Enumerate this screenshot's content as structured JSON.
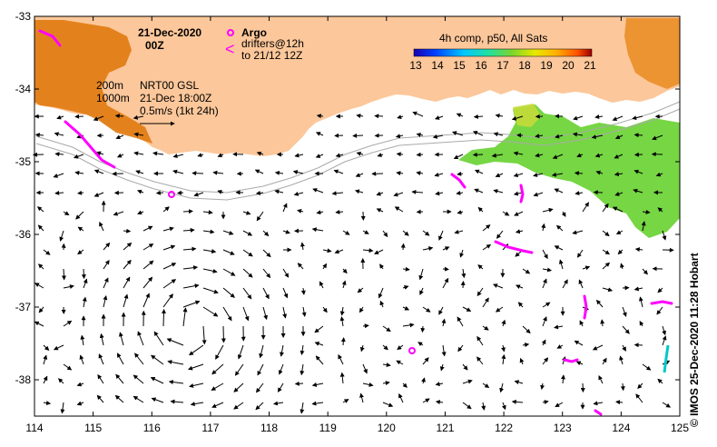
{
  "header": {
    "date": "21-Dec-2020",
    "time": "00Z"
  },
  "legend": {
    "argo_label": "Argo",
    "drifters_label_1": "drifters@12h",
    "drifters_label_2": "to 21/12 12Z",
    "argo_color": "#ff00ff"
  },
  "colorbar": {
    "title": "4h comp, p50, All Sats",
    "ticks": [
      "13",
      "14",
      "15",
      "16",
      "17",
      "18",
      "19",
      "20",
      "21"
    ]
  },
  "info": {
    "isobath_1": "200m",
    "isobath_2": "1000m",
    "product": "NRT00 GSL",
    "timestamp": "21-Dec 18:00Z",
    "scale": "0.5m/s (1kt 24h)"
  },
  "axes": {
    "x_ticks": [
      "114",
      "115",
      "116",
      "117",
      "118",
      "119",
      "120",
      "121",
      "122",
      "123",
      "124",
      "125"
    ],
    "y_ticks": [
      "-33",
      "-34",
      "-35",
      "-36",
      "-37",
      "-38"
    ]
  },
  "credit": "© IMOS 25-Dec-2020 11:28 Hobart",
  "colors": {
    "land": "#fcc79a",
    "sst_green": "#6fd43a",
    "sst_orange": "#e07a10",
    "contour": "#aaaaaa"
  }
}
